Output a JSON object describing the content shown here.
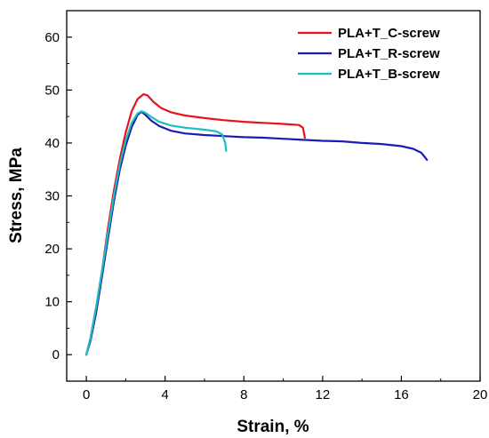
{
  "chart_data": {
    "type": "line",
    "title": "",
    "xlabel": "Strain, %",
    "ylabel": "Stress, MPa",
    "xlim": [
      -1,
      20
    ],
    "ylim": [
      -5,
      65
    ],
    "xticks": [
      0,
      4,
      8,
      12,
      16,
      20
    ],
    "yticks": [
      0,
      10,
      20,
      30,
      40,
      50,
      60
    ],
    "grid": false,
    "legend_position": "top-right",
    "series": [
      {
        "name": "PLA+T_C-screw",
        "color": "#e8121c",
        "points": [
          [
            0,
            0
          ],
          [
            0.2,
            3
          ],
          [
            0.5,
            9
          ],
          [
            0.8,
            16
          ],
          [
            1.1,
            24
          ],
          [
            1.4,
            31
          ],
          [
            1.7,
            37
          ],
          [
            2.0,
            42
          ],
          [
            2.3,
            46
          ],
          [
            2.6,
            48.3
          ],
          [
            2.9,
            49.2
          ],
          [
            3.1,
            49.0
          ],
          [
            3.4,
            47.8
          ],
          [
            3.8,
            46.6
          ],
          [
            4.3,
            45.8
          ],
          [
            5.0,
            45.2
          ],
          [
            6.0,
            44.7
          ],
          [
            7.0,
            44.3
          ],
          [
            8.0,
            44.0
          ],
          [
            9.0,
            43.8
          ],
          [
            10.0,
            43.6
          ],
          [
            10.8,
            43.4
          ],
          [
            11.0,
            42.9
          ],
          [
            11.1,
            41.0
          ]
        ]
      },
      {
        "name": "PLA+T_R-screw",
        "color": "#1b1bb5",
        "points": [
          [
            0,
            0
          ],
          [
            0.2,
            2.5
          ],
          [
            0.5,
            8
          ],
          [
            0.8,
            15
          ],
          [
            1.1,
            22
          ],
          [
            1.4,
            29
          ],
          [
            1.7,
            35
          ],
          [
            2.0,
            39.5
          ],
          [
            2.3,
            43
          ],
          [
            2.6,
            45.3
          ],
          [
            2.8,
            45.9
          ],
          [
            3.0,
            45.3
          ],
          [
            3.3,
            44.2
          ],
          [
            3.7,
            43.2
          ],
          [
            4.3,
            42.3
          ],
          [
            5.0,
            41.8
          ],
          [
            6.0,
            41.5
          ],
          [
            7.0,
            41.3
          ],
          [
            8.0,
            41.1
          ],
          [
            9.0,
            41.0
          ],
          [
            10.0,
            40.8
          ],
          [
            11.0,
            40.6
          ],
          [
            12.0,
            40.4
          ],
          [
            13.0,
            40.3
          ],
          [
            14.0,
            40.0
          ],
          [
            15.0,
            39.8
          ],
          [
            16.0,
            39.4
          ],
          [
            16.6,
            38.9
          ],
          [
            17.0,
            38.2
          ],
          [
            17.2,
            37.3
          ],
          [
            17.3,
            36.8
          ]
        ]
      },
      {
        "name": "PLA+T_B-screw",
        "color": "#1bbfbf",
        "points": [
          [
            0,
            0
          ],
          [
            0.2,
            3
          ],
          [
            0.5,
            9
          ],
          [
            0.8,
            16
          ],
          [
            1.1,
            23
          ],
          [
            1.4,
            30
          ],
          [
            1.7,
            36
          ],
          [
            2.0,
            40.5
          ],
          [
            2.3,
            43.8
          ],
          [
            2.6,
            45.6
          ],
          [
            2.8,
            46.0
          ],
          [
            3.0,
            45.7
          ],
          [
            3.3,
            44.9
          ],
          [
            3.7,
            44.0
          ],
          [
            4.3,
            43.3
          ],
          [
            5.0,
            42.9
          ],
          [
            6.0,
            42.5
          ],
          [
            6.6,
            42.2
          ],
          [
            6.9,
            41.6
          ],
          [
            7.05,
            40.0
          ],
          [
            7.1,
            38.5
          ]
        ]
      }
    ]
  }
}
